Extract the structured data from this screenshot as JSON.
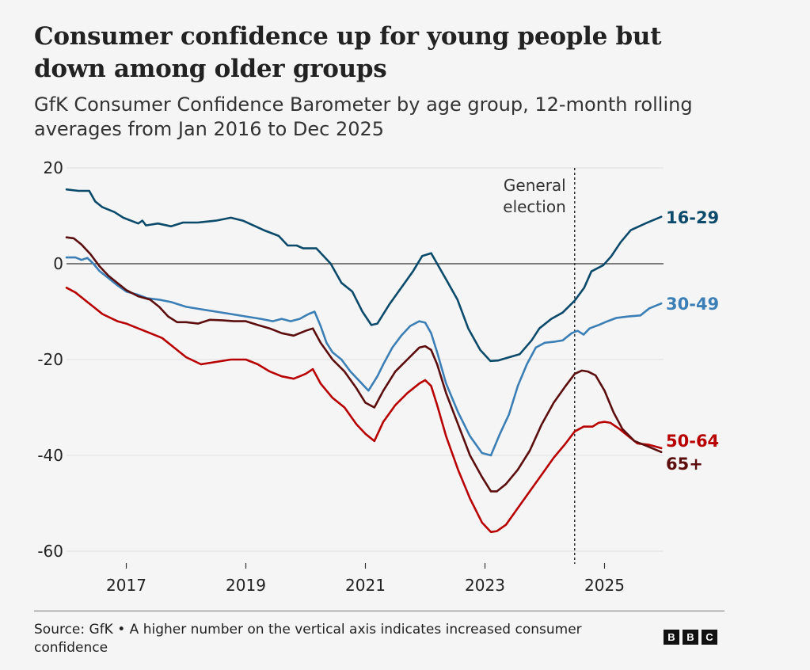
{
  "header": {
    "title": "Consumer confidence up for young people but down among older groups",
    "subtitle": "GfK Consumer Confidence Barometer by age group, 12-month rolling averages from Jan 2016 to Dec 2025"
  },
  "footer": {
    "source": "Source: GfK • A higher number on the vertical axis indicates increased consumer confidence",
    "logo_letters": [
      "B",
      "B",
      "C"
    ]
  },
  "chart_data": {
    "type": "line",
    "title": "Consumer confidence up for young people but down among older groups",
    "subtitle": "GfK Consumer Confidence Barometer by age group, 12-month rolling averages from Jan 2016 to Dec 2025",
    "xlabel": "",
    "ylabel": "",
    "xlim": [
      2016.0,
      2025.95
    ],
    "ylim": [
      -60,
      20
    ],
    "x_ticks": [
      2017,
      2019,
      2021,
      2023,
      2025
    ],
    "x_tick_labels": [
      "2017",
      "2019",
      "2021",
      "2023",
      "2025"
    ],
    "y_ticks": [
      20,
      0,
      -20,
      -40,
      -60
    ],
    "y_tick_labels": [
      "20",
      "0",
      "-20",
      "-40",
      "-60"
    ],
    "grid": "horizontal",
    "zero_line": true,
    "legend": "direct-labels-right",
    "annotations": [
      {
        "type": "vline",
        "x": 2024.5,
        "label_lines": [
          "General",
          "election"
        ],
        "style": "dotted"
      }
    ],
    "series": [
      {
        "name": "16-29",
        "color": "#0b4a6b",
        "x": [
          2016.0,
          2016.2,
          2016.38,
          2016.48,
          2016.6,
          2016.8,
          2016.95,
          2017.2,
          2017.27,
          2017.33,
          2017.53,
          2017.75,
          2017.95,
          2018.2,
          2018.5,
          2018.75,
          2018.95,
          2019.3,
          2019.55,
          2019.7,
          2019.85,
          2019.96,
          2020.18,
          2020.42,
          2020.6,
          2020.78,
          2020.95,
          2021.1,
          2021.2,
          2021.4,
          2021.6,
          2021.8,
          2021.95,
          2022.1,
          2022.2,
          2022.36,
          2022.54,
          2022.72,
          2022.92,
          2023.09,
          2023.22,
          2023.38,
          2023.58,
          2023.78,
          2023.91,
          2024.11,
          2024.3,
          2024.5,
          2024.66,
          2024.78,
          2024.98,
          2025.11,
          2025.27,
          2025.44,
          2025.7,
          2025.95
        ],
        "values": [
          15.5,
          15.2,
          15.2,
          13.0,
          11.8,
          10.8,
          9.6,
          8.4,
          9.0,
          8.0,
          8.4,
          7.8,
          8.6,
          8.6,
          9.0,
          9.6,
          9.0,
          7.0,
          5.8,
          3.8,
          3.8,
          3.2,
          3.2,
          0.0,
          -4.0,
          -5.8,
          -10.0,
          -12.8,
          -12.5,
          -8.5,
          -5.0,
          -1.5,
          1.6,
          2.2,
          0.0,
          -3.5,
          -7.5,
          -13.5,
          -18.0,
          -20.3,
          -20.2,
          -19.6,
          -18.9,
          -16.0,
          -13.5,
          -11.5,
          -10.2,
          -7.7,
          -5.0,
          -1.6,
          -0.3,
          1.5,
          4.5,
          7.0,
          8.5,
          9.8
        ]
      },
      {
        "name": "30-49",
        "color": "#3b7fb6",
        "x": [
          2016.0,
          2016.15,
          2016.25,
          2016.35,
          2016.45,
          2016.55,
          2016.7,
          2016.85,
          2017.0,
          2017.2,
          2017.35,
          2017.55,
          2017.75,
          2018.0,
          2018.25,
          2018.5,
          2018.75,
          2019.0,
          2019.25,
          2019.45,
          2019.6,
          2019.75,
          2019.9,
          2020.05,
          2020.15,
          2020.25,
          2020.35,
          2020.45,
          2020.6,
          2020.75,
          2020.9,
          2021.05,
          2021.2,
          2021.3,
          2021.45,
          2021.6,
          2021.75,
          2021.9,
          2022.0,
          2022.1,
          2022.2,
          2022.35,
          2022.55,
          2022.75,
          2022.95,
          2023.1,
          2023.25,
          2023.4,
          2023.55,
          2023.7,
          2023.85,
          2024.0,
          2024.15,
          2024.3,
          2024.45,
          2024.55,
          2024.65,
          2024.75,
          2024.9,
          2025.05,
          2025.2,
          2025.4,
          2025.6,
          2025.75,
          2025.95
        ],
        "values": [
          1.3,
          1.3,
          0.8,
          1.2,
          0.0,
          -1.5,
          -3.0,
          -4.5,
          -5.8,
          -6.5,
          -7.2,
          -7.5,
          -8.0,
          -9.0,
          -9.5,
          -10.0,
          -10.5,
          -11.0,
          -11.5,
          -12.0,
          -11.5,
          -12.0,
          -11.5,
          -10.5,
          -10.0,
          -13.0,
          -16.5,
          -18.5,
          -20.0,
          -22.5,
          -24.5,
          -26.5,
          -23.5,
          -21.0,
          -17.5,
          -15.0,
          -13.0,
          -12.0,
          -12.3,
          -14.5,
          -18.5,
          -25.0,
          -31.0,
          -36.0,
          -39.5,
          -40.0,
          -35.5,
          -31.5,
          -25.5,
          -21.0,
          -17.5,
          -16.5,
          -16.3,
          -16.0,
          -14.5,
          -14.0,
          -14.8,
          -13.5,
          -12.8,
          -12.0,
          -11.3,
          -11.0,
          -10.8,
          -9.3,
          -8.3
        ]
      },
      {
        "name": "50-64",
        "color": "#b80000",
        "x": [
          2016.0,
          2016.15,
          2016.3,
          2016.45,
          2016.6,
          2016.85,
          2017.0,
          2017.2,
          2017.4,
          2017.6,
          2017.8,
          2018.0,
          2018.25,
          2018.5,
          2018.75,
          2019.0,
          2019.2,
          2019.4,
          2019.6,
          2019.8,
          2020.0,
          2020.12,
          2020.25,
          2020.45,
          2020.65,
          2020.85,
          2021.0,
          2021.15,
          2021.3,
          2021.5,
          2021.7,
          2021.9,
          2022.0,
          2022.1,
          2022.2,
          2022.35,
          2022.55,
          2022.75,
          2022.95,
          2023.1,
          2023.2,
          2023.35,
          2023.55,
          2023.75,
          2023.95,
          2024.15,
          2024.35,
          2024.5,
          2024.65,
          2024.8,
          2024.9,
          2025.0,
          2025.1,
          2025.25,
          2025.4,
          2025.55,
          2025.75,
          2025.95
        ],
        "values": [
          -5.0,
          -6.0,
          -7.5,
          -9.0,
          -10.5,
          -12.0,
          -12.5,
          -13.5,
          -14.5,
          -15.5,
          -17.5,
          -19.5,
          -21.0,
          -20.5,
          -20.0,
          -20.0,
          -21.0,
          -22.5,
          -23.5,
          -24.0,
          -23.0,
          -22.0,
          -25.0,
          -28.0,
          -30.0,
          -33.5,
          -35.5,
          -37.0,
          -33.0,
          -29.5,
          -27.0,
          -25.0,
          -24.3,
          -25.5,
          -29.5,
          -36.0,
          -43.0,
          -49.0,
          -54.0,
          -56.0,
          -55.8,
          -54.5,
          -51.0,
          -47.5,
          -44.0,
          -40.5,
          -37.5,
          -35.0,
          -34.0,
          -34.0,
          -33.2,
          -33.0,
          -33.2,
          -34.5,
          -36.0,
          -37.5,
          -37.8,
          -38.5
        ]
      },
      {
        "name": "65+",
        "color": "#5c0d0d",
        "x": [
          2016.0,
          2016.12,
          2016.25,
          2016.4,
          2016.55,
          2016.7,
          2016.85,
          2017.0,
          2017.2,
          2017.4,
          2017.55,
          2017.7,
          2017.85,
          2018.0,
          2018.2,
          2018.4,
          2018.6,
          2018.8,
          2019.0,
          2019.2,
          2019.4,
          2019.6,
          2019.8,
          2020.0,
          2020.12,
          2020.25,
          2020.45,
          2020.65,
          2020.85,
          2021.0,
          2021.15,
          2021.3,
          2021.5,
          2021.7,
          2021.9,
          2022.0,
          2022.1,
          2022.2,
          2022.35,
          2022.55,
          2022.75,
          2022.95,
          2023.1,
          2023.2,
          2023.35,
          2023.55,
          2023.75,
          2023.95,
          2024.15,
          2024.35,
          2024.5,
          2024.62,
          2024.72,
          2024.85,
          2025.0,
          2025.15,
          2025.3,
          2025.5,
          2025.7,
          2025.95
        ],
        "values": [
          5.5,
          5.3,
          4.0,
          2.0,
          -0.5,
          -2.5,
          -4.0,
          -5.5,
          -6.8,
          -7.5,
          -9.0,
          -11.0,
          -12.2,
          -12.2,
          -12.5,
          -11.7,
          -11.8,
          -12.0,
          -12.0,
          -12.8,
          -13.5,
          -14.5,
          -15.0,
          -14.0,
          -13.5,
          -16.5,
          -20.0,
          -22.5,
          -26.0,
          -29.0,
          -30.0,
          -26.5,
          -22.5,
          -20.0,
          -17.5,
          -17.2,
          -18.0,
          -21.0,
          -27.0,
          -33.5,
          -40.0,
          -44.5,
          -47.5,
          -47.5,
          -46.0,
          -43.0,
          -39.0,
          -33.5,
          -29.0,
          -25.5,
          -23.0,
          -22.3,
          -22.5,
          -23.3,
          -26.5,
          -31.0,
          -34.5,
          -37.0,
          -38.0,
          -39.3
        ]
      }
    ]
  }
}
